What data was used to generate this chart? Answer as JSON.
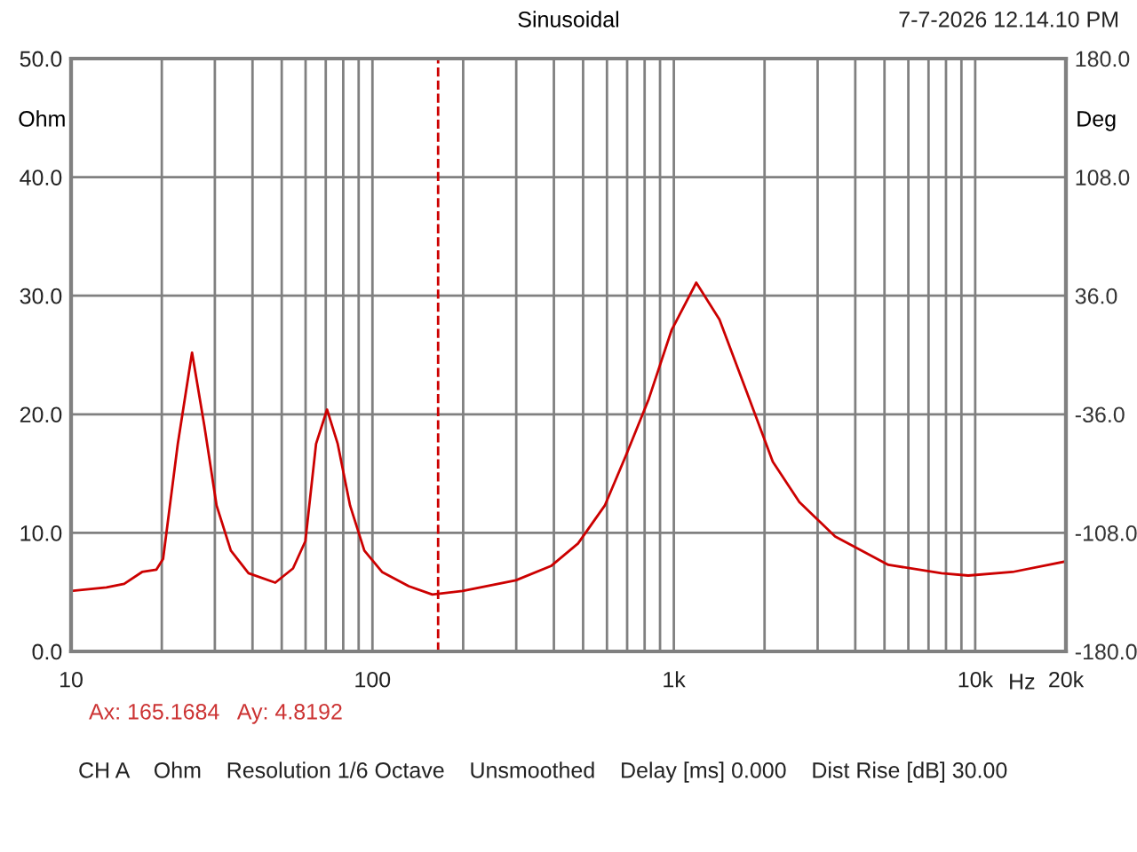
{
  "chart_data": {
    "type": "line",
    "title": "Sinusoidal",
    "xlabel": "Hz",
    "ylabel": "Ohm",
    "y2label": "Deg",
    "annotations": [
      "7-7-2026 12.14.10 PM",
      "Ax: 165.1684   Ay: 4.8192",
      "CH A    Ohm    Resolution 1/6 Octave    Unsmoothed    Delay [ms] 0.000    Dist Rise [dB] 30.00"
    ],
    "log": "x",
    "grid": true,
    "legend": false,
    "marker": "none",
    "line_style": "solid",
    "xlim": [
      10,
      20000
    ],
    "ylim": [
      0,
      50
    ],
    "y2lim": [
      -180,
      180
    ],
    "xticks": [
      10,
      {
        "value": 20,
        "label": null
      },
      {
        "value": 30,
        "label": null
      },
      {
        "value": 40,
        "label": null
      },
      {
        "value": 50,
        "label": null
      },
      {
        "value": 60,
        "label": null
      },
      {
        "value": 70,
        "label": null
      },
      {
        "value": 80,
        "label": null
      },
      {
        "value": 90,
        "label": null
      },
      100,
      {
        "value": 200,
        "label": null
      },
      {
        "value": 300,
        "label": null
      },
      {
        "value": 400,
        "label": null
      },
      {
        "value": 500,
        "label": null
      },
      {
        "value": 600,
        "label": null
      },
      {
        "value": 700,
        "label": null
      },
      {
        "value": 800,
        "label": null
      },
      {
        "value": 900,
        "label": null
      },
      {
        "value": 1000,
        "label": "1k"
      },
      {
        "value": 2000,
        "label": null
      },
      {
        "value": 3000,
        "label": null
      },
      {
        "value": 4000,
        "label": null
      },
      {
        "value": 5000,
        "label": null
      },
      {
        "value": 6000,
        "label": null
      },
      {
        "value": 7000,
        "label": null
      },
      {
        "value": 8000,
        "label": null
      },
      {
        "value": 9000,
        "label": null
      },
      {
        "value": 10000,
        "label": "10k"
      },
      {
        "value": 20000,
        "label": "20k"
      }
    ],
    "yticks": [
      {
        "value": 0,
        "label": "0.0"
      },
      {
        "value": 10,
        "label": "10.0"
      },
      {
        "value": 20,
        "label": "20.0"
      },
      {
        "value": 30,
        "label": "30.0"
      },
      {
        "value": 40,
        "label": "40.0"
      },
      {
        "value": 50,
        "label": "50.0"
      }
    ],
    "y2ticks": [
      {
        "value": -180,
        "label": "-180.0"
      },
      {
        "value": -108,
        "label": "-108.0"
      },
      {
        "value": -36,
        "label": "-36.0"
      },
      {
        "value": 36,
        "label": "36.0"
      },
      {
        "value": 108,
        "label": "108.0"
      },
      {
        "value": 180,
        "label": "180.0"
      }
    ],
    "ref_lines": [
      {
        "axis": "x",
        "value": 165.1684,
        "color": "#cc0000",
        "line_style": "dashed"
      }
    ],
    "series": [
      {
        "color": "#cc0000",
        "x": [
          10,
          13.1,
          15,
          17.2,
          19.2,
          20.2,
          22.6,
          25.2,
          27.7,
          30.4,
          33.9,
          38.8,
          47.6,
          54.5,
          59.9,
          65,
          70.7,
          76.7,
          84.3,
          94,
          107.6,
          132,
          158,
          199,
          299,
          391,
          481,
          590,
          693,
          826,
          983,
          1187,
          1417,
          1738,
          2130,
          2610,
          3430,
          5150,
          7730,
          9480,
          13300,
          20000
        ],
        "values": [
          5.1,
          5.4,
          5.7,
          6.7,
          6.9,
          7.8,
          17.5,
          25.2,
          19,
          12.3,
          8.5,
          6.6,
          5.8,
          7.0,
          9.3,
          17.5,
          20.4,
          17.5,
          12.3,
          8.5,
          6.7,
          5.5,
          4.8,
          5.1,
          6.0,
          7.2,
          9.1,
          12.3,
          16.5,
          21.3,
          27.1,
          31.1,
          28,
          22,
          16,
          12.6,
          9.7,
          7.3,
          6.6,
          6.4,
          6.7,
          7.6
        ]
      }
    ]
  }
}
